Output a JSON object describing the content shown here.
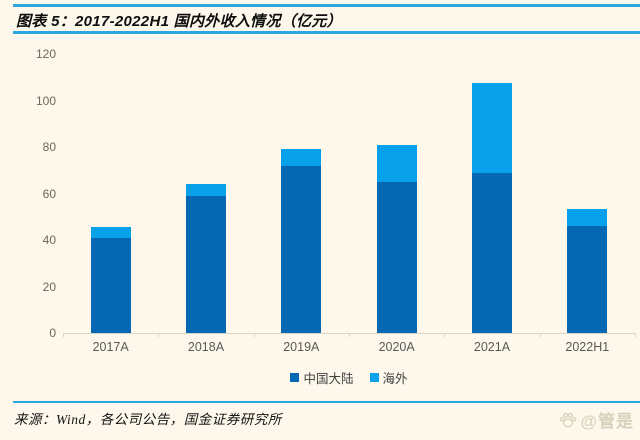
{
  "header": {
    "title": "图表 5：2017-2022H1 国内外收入情况（亿元）"
  },
  "colors": {
    "background": "#FDF8EB",
    "rule_blue": "#2BA6DF",
    "mainland_blue": "#0667B2",
    "overseas_blue": "#09A2EA",
    "axis_gray": "#D9D5C9"
  },
  "chart_data": {
    "type": "bar",
    "stacked": true,
    "title": "2017-2022H1 国内外收入情况（亿元）",
    "categories": [
      "2017A",
      "2018A",
      "2019A",
      "2020A",
      "2021A",
      "2022H1"
    ],
    "series": [
      {
        "name": "中国大陆",
        "color": "#0667B2",
        "values": [
          41,
          59,
          72,
          65,
          69,
          46
        ]
      },
      {
        "name": "海外",
        "color": "#09A2EA",
        "values": [
          4.5,
          5,
          7,
          16,
          38.5,
          7.5
        ]
      }
    ],
    "xlabel": "",
    "ylabel": "",
    "ylim": [
      0,
      120
    ],
    "yticks": [
      0,
      20,
      40,
      60,
      80,
      100,
      120
    ],
    "grid": false,
    "legend_position": "bottom"
  },
  "footer": {
    "source": "来源：Wind，各公司公告，国金证券研究所",
    "watermark": "@管是"
  }
}
